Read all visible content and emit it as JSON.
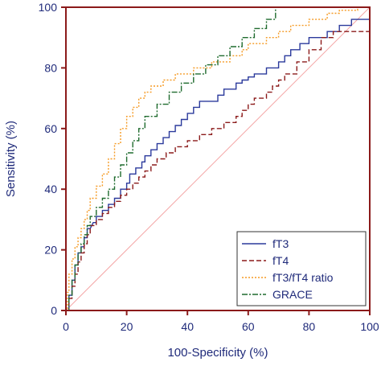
{
  "chart_data": {
    "type": "line",
    "xlabel": "100-Specificity (%)",
    "ylabel": "Sensitivity (%)",
    "xlim": [
      0,
      100
    ],
    "ylim": [
      0,
      100
    ],
    "xticks": [
      0,
      20,
      40,
      60,
      80,
      100
    ],
    "yticks": [
      0,
      20,
      40,
      60,
      80,
      100
    ],
    "grid": false,
    "legend_position": "bottom-right",
    "colors": {
      "axis": "#8b1a1a",
      "text": "#1f2a7a",
      "reference": "#f4a6a6"
    },
    "reference_line": {
      "x": [
        0,
        100
      ],
      "y": [
        0,
        100
      ]
    },
    "series": [
      {
        "name": "fT3",
        "color": "#2b3a9c",
        "dash": "solid",
        "x": [
          0,
          1,
          1,
          2,
          2,
          3,
          3,
          4,
          4,
          5,
          5,
          6,
          6,
          7,
          7,
          8,
          9,
          10,
          10,
          12,
          12,
          14,
          14,
          16,
          16,
          18,
          18,
          20,
          20,
          21,
          21,
          23,
          23,
          25,
          25,
          26,
          26,
          28,
          28,
          30,
          30,
          32,
          32,
          34,
          34,
          36,
          36,
          38,
          38,
          40,
          40,
          42,
          42,
          44,
          44,
          50,
          50,
          52,
          52,
          56,
          56,
          58,
          58,
          60,
          60,
          62,
          62,
          66,
          66,
          70,
          70,
          72,
          72,
          74,
          74,
          77,
          77,
          80,
          80,
          86,
          86,
          90,
          90,
          94,
          94,
          100,
          100
        ],
        "y": [
          0,
          0,
          5,
          5,
          10,
          10,
          15,
          15,
          19,
          19,
          21,
          21,
          24,
          24,
          27,
          27,
          29,
          29,
          31,
          31,
          33,
          33,
          35,
          35,
          37,
          37,
          40,
          40,
          42,
          42,
          45,
          45,
          47,
          47,
          49,
          49,
          51,
          51,
          53,
          53,
          55,
          55,
          57,
          57,
          59,
          59,
          61,
          61,
          63,
          63,
          65,
          65,
          67,
          67,
          69,
          69,
          71,
          71,
          73,
          73,
          75,
          75,
          76,
          76,
          77,
          77,
          78,
          78,
          80,
          80,
          82,
          82,
          84,
          84,
          86,
          86,
          88,
          88,
          90,
          90,
          92,
          92,
          94,
          94,
          96,
          96,
          100
        ]
      },
      {
        "name": "fT4",
        "color": "#8b1a1a",
        "dash": "6,3",
        "x": [
          0,
          1,
          1,
          2,
          2,
          3,
          3,
          4,
          4,
          5,
          5,
          6,
          6,
          7,
          7,
          8,
          8,
          10,
          10,
          12,
          12,
          14,
          14,
          16,
          16,
          18,
          18,
          20,
          20,
          22,
          22,
          24,
          24,
          26,
          26,
          28,
          28,
          30,
          30,
          33,
          33,
          36,
          36,
          40,
          40,
          44,
          44,
          48,
          48,
          52,
          52,
          56,
          56,
          58,
          58,
          60,
          60,
          62,
          62,
          66,
          66,
          68,
          68,
          70,
          70,
          72,
          72,
          76,
          76,
          80,
          80,
          84,
          84,
          88,
          88,
          100,
          100
        ],
        "y": [
          0,
          0,
          4,
          4,
          8,
          8,
          12,
          12,
          16,
          16,
          19,
          19,
          22,
          22,
          25,
          25,
          28,
          28,
          30,
          30,
          32,
          32,
          34,
          34,
          36,
          36,
          38,
          38,
          40,
          40,
          42,
          42,
          44,
          44,
          46,
          46,
          48,
          48,
          50,
          50,
          52,
          52,
          54,
          54,
          56,
          56,
          58,
          58,
          60,
          60,
          62,
          62,
          64,
          64,
          66,
          66,
          68,
          68,
          70,
          70,
          72,
          72,
          74,
          74,
          76,
          76,
          78,
          78,
          82,
          82,
          86,
          86,
          90,
          90,
          92,
          92,
          100
        ]
      },
      {
        "name": "fT3/fT4 ratio",
        "color": "#f59a23",
        "dash": "2,2",
        "x": [
          0,
          0.5,
          0.5,
          1,
          1,
          2,
          2,
          3,
          3,
          4,
          4,
          5,
          5,
          6,
          6,
          7,
          7,
          8,
          8,
          10,
          10,
          12,
          12,
          14,
          14,
          16,
          16,
          18,
          18,
          20,
          20,
          22,
          22,
          24,
          24,
          26,
          26,
          28,
          28,
          32,
          32,
          36,
          36,
          42,
          42,
          48,
          48,
          54,
          54,
          58,
          58,
          60,
          60,
          66,
          66,
          70,
          70,
          74,
          74,
          80,
          80,
          86,
          86,
          90,
          90,
          96,
          96,
          100,
          100
        ],
        "y": [
          0,
          0,
          6,
          6,
          12,
          12,
          17,
          17,
          21,
          21,
          24,
          24,
          27,
          27,
          30,
          30,
          33,
          33,
          37,
          37,
          41,
          41,
          45,
          45,
          50,
          50,
          55,
          55,
          60,
          60,
          64,
          64,
          67,
          67,
          70,
          70,
          72,
          72,
          74,
          74,
          76,
          76,
          78,
          78,
          80,
          80,
          82,
          82,
          84,
          84,
          86,
          86,
          88,
          88,
          90,
          90,
          92,
          92,
          94,
          94,
          96,
          96,
          98,
          98,
          99,
          99,
          100,
          100,
          100
        ]
      },
      {
        "name": "GRACE",
        "color": "#1f6b2e",
        "dash": "7,2,2,2",
        "x": [
          0,
          1,
          1,
          2,
          2,
          3,
          3,
          4,
          4,
          5,
          5,
          6,
          6,
          7,
          7,
          8,
          8,
          10,
          10,
          12,
          12,
          14,
          14,
          16,
          16,
          18,
          18,
          20,
          20,
          22,
          22,
          24,
          24,
          26,
          26,
          30,
          30,
          34,
          34,
          38,
          38,
          42,
          42,
          46,
          46,
          50,
          50,
          54,
          54,
          58,
          58,
          62,
          62,
          66,
          66,
          69,
          69,
          100
        ],
        "y": [
          0,
          0,
          5,
          5,
          10,
          10,
          15,
          15,
          19,
          19,
          22,
          22,
          25,
          25,
          28,
          28,
          31,
          31,
          34,
          34,
          37,
          37,
          40,
          40,
          44,
          44,
          48,
          48,
          52,
          52,
          56,
          56,
          60,
          60,
          64,
          64,
          68,
          68,
          72,
          72,
          75,
          75,
          78,
          78,
          81,
          81,
          84,
          84,
          87,
          87,
          90,
          90,
          93,
          93,
          96,
          96,
          100,
          100
        ]
      }
    ]
  }
}
